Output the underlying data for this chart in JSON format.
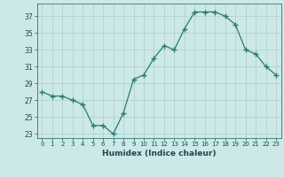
{
  "x": [
    0,
    1,
    2,
    3,
    4,
    5,
    6,
    7,
    8,
    9,
    10,
    11,
    12,
    13,
    14,
    15,
    16,
    17,
    18,
    19,
    20,
    21,
    22,
    23
  ],
  "y": [
    28,
    27.5,
    27.5,
    27,
    26.5,
    24,
    24,
    23,
    25.5,
    29.5,
    30,
    32,
    33.5,
    33,
    35.5,
    37.5,
    37.5,
    37.5,
    37,
    36,
    33,
    32.5,
    31,
    30
  ],
  "xlabel": "Humidex (Indice chaleur)",
  "line_color": "#2d7a6e",
  "marker": "+",
  "marker_size": 4,
  "bg_color": "#cce8e8",
  "grid_color": "#b0cccc",
  "ylim": [
    22.5,
    38.5
  ],
  "yticks": [
    23,
    25,
    27,
    29,
    31,
    33,
    35,
    37
  ],
  "xticks": [
    0,
    1,
    2,
    3,
    4,
    5,
    6,
    7,
    8,
    9,
    10,
    11,
    12,
    13,
    14,
    15,
    16,
    17,
    18,
    19,
    20,
    21,
    22,
    23
  ],
  "xlim": [
    -0.5,
    23.5
  ]
}
